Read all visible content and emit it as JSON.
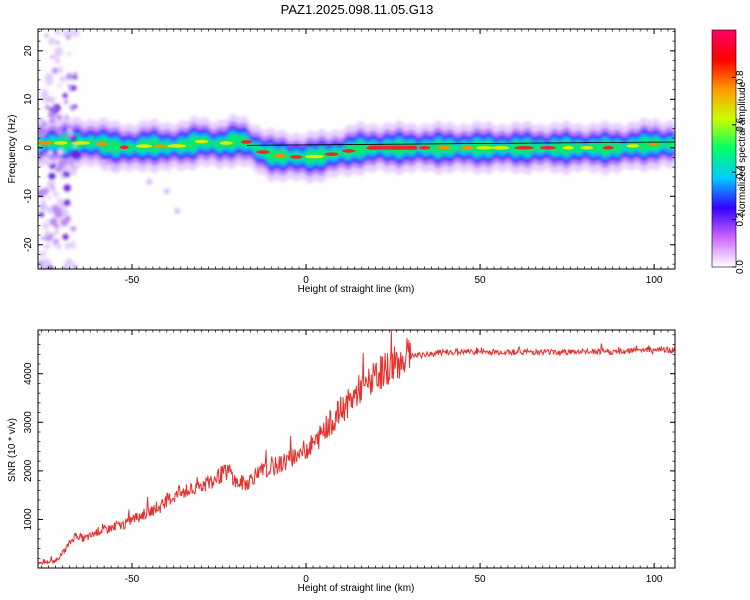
{
  "title": "PAZ1.2025.098.11.05.G13",
  "chart_data": [
    {
      "type": "heatmap",
      "xlabel": "Height of straight line (km)",
      "ylabel": "Frequency (Hz)",
      "xlim": [
        -77,
        106
      ],
      "ylim": [
        -25,
        24.5
      ],
      "xticks": [
        -50,
        0,
        50,
        100
      ],
      "yticks": [
        -20,
        -10,
        0,
        10,
        20
      ],
      "colorbar": {
        "label": "Normalized spectral amplitude",
        "range": [
          0,
          1
        ],
        "ticks": [
          0.0,
          0.2,
          0.4,
          0.6,
          0.8
        ],
        "tick_labels": [
          "0.0",
          "0.2",
          "0.4",
          "0.6",
          "0.8"
        ],
        "colors": [
          "#ffffff",
          "#cc66ff",
          "#3300ff",
          "#00ccff",
          "#00ff66",
          "#ccff00",
          "#ff9900",
          "#ff0000",
          "#ff0066"
        ]
      },
      "ridge": {
        "x": [
          -77,
          -70,
          -65,
          -60,
          -55,
          -50,
          -45,
          -40,
          -35,
          -30,
          -25,
          -20,
          -17,
          -15,
          -12,
          -10,
          -5,
          0,
          5,
          10,
          15,
          20,
          30,
          40,
          50,
          60,
          70,
          80,
          90,
          95,
          100,
          106
        ],
        "frequency": [
          1.0,
          1.0,
          1.0,
          1.0,
          0.2,
          0.0,
          0.5,
          0.2,
          0.5,
          1.3,
          0.6,
          1.5,
          1.2,
          0.0,
          -1.0,
          -1.5,
          -1.8,
          -2.0,
          -1.6,
          -1.0,
          -0.2,
          0.0,
          0.0,
          0.0,
          0.0,
          0.0,
          0.0,
          0.0,
          0.0,
          0.5,
          0.7,
          0.7
        ]
      },
      "scatter_blobs": {
        "x": [
          -37,
          -40,
          -45,
          -55,
          -58
        ],
        "frequency": [
          -13,
          -9,
          -7,
          -4,
          -3
        ]
      }
    },
    {
      "type": "line",
      "xlabel": "Height of straight line (km)",
      "ylabel": "SNR (10 * v/v)",
      "xlim": [
        -77,
        106
      ],
      "ylim": [
        0,
        4900
      ],
      "xticks": [
        -50,
        0,
        50,
        100
      ],
      "yticks": [
        1000,
        2000,
        3000,
        4000
      ],
      "series": [
        {
          "color": "#e8302d",
          "x": [
            -77,
            -72,
            -70,
            -68,
            -66,
            -64,
            -62,
            -60,
            -57,
            -55,
            -52,
            -50,
            -47,
            -45,
            -42,
            -40,
            -37,
            -35,
            -32,
            -30,
            -27,
            -25,
            -22,
            -20,
            -17,
            -15,
            -12,
            -10,
            -7,
            -5,
            -2,
            0,
            3,
            5,
            8,
            10,
            13,
            15,
            18,
            20,
            23,
            25,
            28,
            30,
            35,
            40,
            45,
            50,
            55,
            60,
            65,
            70,
            75,
            80,
            85,
            90,
            95,
            100,
            106
          ],
          "y": [
            100,
            150,
            300,
            500,
            700,
            600,
            650,
            750,
            800,
            850,
            900,
            1000,
            1100,
            1150,
            1250,
            1400,
            1500,
            1550,
            1600,
            1700,
            1800,
            1900,
            2000,
            1750,
            1750,
            1900,
            2000,
            2050,
            2150,
            2250,
            2350,
            2450,
            2600,
            2850,
            3050,
            3250,
            3450,
            3650,
            3800,
            3950,
            4100,
            4200,
            4300,
            4350,
            4400,
            4450,
            4450,
            4450,
            4450,
            4450,
            4450,
            4450,
            4450,
            4450,
            4450,
            4450,
            4500,
            4500,
            4480
          ]
        }
      ]
    }
  ]
}
